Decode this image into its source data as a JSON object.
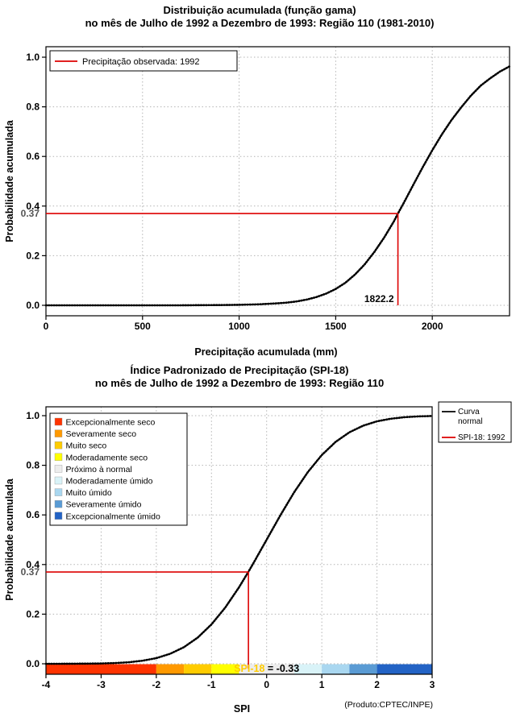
{
  "page": {
    "background": "#FFFFFF"
  },
  "chart_data": [
    {
      "id": "gamma-cdf",
      "type": "line",
      "title_line1": "Distribuição acumulada (função gama)",
      "title_line2": "no mês de Julho de 1992 a Dezembro de 1993: Região 110 (1981-2010)",
      "xlabel": "Precipitação acumulada (mm)",
      "ylabel": "Probabilidade acumulada",
      "xlim": [
        0,
        2400
      ],
      "ylim": [
        0,
        1
      ],
      "xtick_values": [
        0,
        500,
        1000,
        1500,
        2000
      ],
      "xtick_labels": [
        "0",
        "500",
        "1000",
        "1500",
        "2000"
      ],
      "ytick_values": [
        0,
        0.2,
        0.4,
        0.6,
        0.8,
        1.0
      ],
      "ytick_labels": [
        "0.0",
        "0.2",
        "0.4",
        "0.6",
        "0.8",
        "1.0"
      ],
      "grid": true,
      "curve_color": "#000000",
      "series": [
        {
          "name": "Distribuição acumulada (função gama)",
          "points": [
            [
              0,
              0
            ],
            [
              100,
              0
            ],
            [
              200,
              0
            ],
            [
              300,
              0
            ],
            [
              400,
              0
            ],
            [
              500,
              0
            ],
            [
              600,
              0
            ],
            [
              700,
              0
            ],
            [
              800,
              0.0005
            ],
            [
              900,
              0.001
            ],
            [
              1000,
              0.002
            ],
            [
              1100,
              0.004
            ],
            [
              1200,
              0.008
            ],
            [
              1250,
              0.011
            ],
            [
              1300,
              0.016
            ],
            [
              1350,
              0.023
            ],
            [
              1400,
              0.033
            ],
            [
              1450,
              0.047
            ],
            [
              1500,
              0.066
            ],
            [
              1550,
              0.091
            ],
            [
              1600,
              0.124
            ],
            [
              1650,
              0.165
            ],
            [
              1700,
              0.215
            ],
            [
              1750,
              0.272
            ],
            [
              1800,
              0.337
            ],
            [
              1822.2,
              0.37
            ],
            [
              1850,
              0.409
            ],
            [
              1900,
              0.483
            ],
            [
              1950,
              0.556
            ],
            [
              2000,
              0.625
            ],
            [
              2050,
              0.689
            ],
            [
              2100,
              0.747
            ],
            [
              2150,
              0.798
            ],
            [
              2200,
              0.845
            ],
            [
              2250,
              0.885
            ],
            [
              2300,
              0.915
            ],
            [
              2350,
              0.942
            ],
            [
              2400,
              0.963
            ]
          ]
        }
      ],
      "marker": {
        "x": 1822.2,
        "y": 0.37,
        "x_label": "1822.2",
        "y_label": "0.37",
        "color": "#DD0000"
      },
      "legend": {
        "position": "top-left",
        "items": [
          {
            "type": "line",
            "color": "#DD0000",
            "label": "Precipitação observada: 1992"
          }
        ]
      }
    },
    {
      "id": "spi-cdf",
      "type": "line",
      "title_line1": "Índice Padronizado de Precipitação (SPI-18)",
      "title_line2": "no mês de Julho de 1992 a Dezembro de 1993: Região 110",
      "xlabel": "SPI",
      "ylabel": "Probabilidade acumulada",
      "xlim": [
        -4,
        3
      ],
      "ylim": [
        0,
        1
      ],
      "xtick_values": [
        -4,
        -3,
        -2,
        -1,
        0,
        1,
        2,
        3
      ],
      "xtick_labels": [
        "-4",
        "-3",
        "-2",
        "-1",
        "0",
        "1",
        "2",
        "3"
      ],
      "ytick_values": [
        0,
        0.2,
        0.4,
        0.6,
        0.8,
        1.0
      ],
      "ytick_labels": [
        "0.0",
        "0.2",
        "0.4",
        "0.6",
        "0.8",
        "1.0"
      ],
      "grid": true,
      "curve_color": "#000000",
      "series": [
        {
          "name": "Curva normal",
          "points": [
            [
              -4,
              0.0
            ],
            [
              -3.75,
              0.0001
            ],
            [
              -3.5,
              0.0002
            ],
            [
              -3.25,
              0.0006
            ],
            [
              -3,
              0.0013
            ],
            [
              -2.75,
              0.003
            ],
            [
              -2.5,
              0.0062
            ],
            [
              -2.25,
              0.0122
            ],
            [
              -2,
              0.0228
            ],
            [
              -1.75,
              0.0401
            ],
            [
              -1.5,
              0.0668
            ],
            [
              -1.25,
              0.1056
            ],
            [
              -1,
              0.1587
            ],
            [
              -0.75,
              0.2266
            ],
            [
              -0.5,
              0.3085
            ],
            [
              -0.33,
              0.3707
            ],
            [
              -0.25,
              0.4013
            ],
            [
              0,
              0.5
            ],
            [
              0.25,
              0.5987
            ],
            [
              0.5,
              0.6915
            ],
            [
              0.75,
              0.7734
            ],
            [
              1,
              0.8413
            ],
            [
              1.25,
              0.8944
            ],
            [
              1.5,
              0.9332
            ],
            [
              1.75,
              0.9599
            ],
            [
              2,
              0.9772
            ],
            [
              2.25,
              0.9878
            ],
            [
              2.5,
              0.9938
            ],
            [
              2.75,
              0.997
            ],
            [
              3,
              0.9987
            ]
          ]
        }
      ],
      "marker": {
        "x": -0.33,
        "y": 0.37,
        "y_label": "0.37",
        "color": "#DD0000"
      },
      "annotation": {
        "prefix": "SPI-18",
        "prefix_color": "#FFCC00",
        "rest": " = -0.33",
        "rest_color": "#000000"
      },
      "categories": [
        {
          "label": "Excepcionalmente seco",
          "color": "#FF3300",
          "from": -4,
          "to": -2
        },
        {
          "label": "Severamente seco",
          "color": "#FF9900",
          "from": -2,
          "to": -1.5
        },
        {
          "label": "Muito seco",
          "color": "#FFCC00",
          "from": -1.5,
          "to": -1
        },
        {
          "label": "Moderadamente seco",
          "color": "#FFFF00",
          "from": -1,
          "to": -0.5
        },
        {
          "label": "Próximo à normal",
          "color": "#EDEDED",
          "from": -0.5,
          "to": 0.5
        },
        {
          "label": "Moderadamente úmido",
          "color": "#D9F3F8",
          "from": 0.5,
          "to": 1
        },
        {
          "label": "Muito úmido",
          "color": "#A9D7F0",
          "from": 1,
          "to": 1.5
        },
        {
          "label": "Severamente úmido",
          "color": "#5A9BD4",
          "from": 1.5,
          "to": 2
        },
        {
          "label": "Excepcionalmente úmido",
          "color": "#2363C5",
          "from": 2,
          "to": 3
        }
      ],
      "legend_right": {
        "items": [
          {
            "type": "line",
            "color": "#000000",
            "label_lines": [
              "Curva",
              "normal"
            ]
          },
          {
            "type": "line",
            "color": "#DD0000",
            "label_lines": [
              "SPI-18: 1992"
            ]
          }
        ]
      },
      "product_note": "(Produto:CPTEC/INPE)"
    }
  ]
}
